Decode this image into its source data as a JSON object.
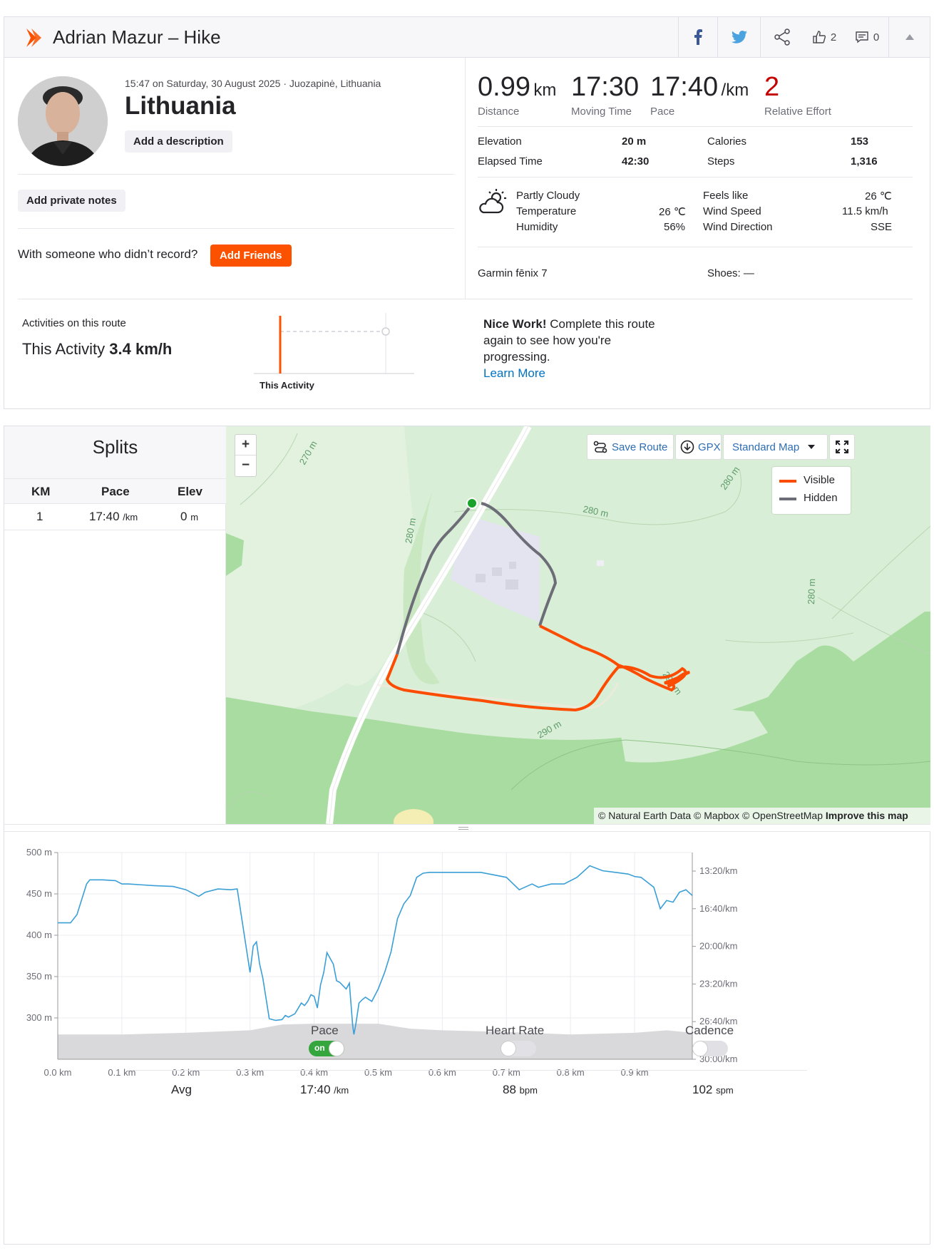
{
  "header": {
    "title": "Adrian Mazur – Hike",
    "kudos_count": "2",
    "comments_count": "0"
  },
  "activity": {
    "datetime_location": "15:47 on Saturday, 30 August 2025 · Juozapinė, Lithuania",
    "name": "Lithuania",
    "add_description": "Add a description",
    "add_private_notes": "Add private notes",
    "with_someone": "With someone who didn’t record?",
    "add_friends": "Add Friends"
  },
  "stats": {
    "distance_value": "0.99",
    "distance_unit": "km",
    "distance_label": "Distance",
    "moving_time_value": "17:30",
    "moving_time_label": "Moving Time",
    "pace_value": "17:40",
    "pace_unit": "/km",
    "pace_label": "Pace",
    "relative_effort_value": "2",
    "relative_effort_label": "Relative Effort",
    "elevation_label": "Elevation",
    "elevation_value": "20 m",
    "elapsed_label": "Elapsed Time",
    "elapsed_value": "42:30",
    "calories_label": "Calories",
    "calories_value": "153",
    "steps_label": "Steps",
    "steps_value": "1,316"
  },
  "weather": {
    "condition": "Partly Cloudy",
    "temperature_label": "Temperature",
    "temperature_value": "26 ℃",
    "humidity_label": "Humidity",
    "humidity_value": "56%",
    "feels_like_label": "Feels like",
    "feels_like_value": "26 ℃",
    "wind_speed_label": "Wind Speed",
    "wind_speed_value": "11.5 km/h",
    "wind_direction_label": "Wind Direction",
    "wind_direction_value": "SSE"
  },
  "gear": {
    "device": "Garmin fēnix 7",
    "shoes": "Shoes: —"
  },
  "route": {
    "activities_label": "Activities on this route",
    "this_activity_prefix": "This Activity",
    "this_activity_speed": "3.4 km/h",
    "chart_label": "This Activity",
    "nice_work_bold": "Nice Work!",
    "nice_work_line1": " Complete this route",
    "nice_work_line2": "again to see how you're",
    "nice_work_line3": "progressing.",
    "learn_more": "Learn More"
  },
  "splits": {
    "title": "Splits",
    "col_km": "KM",
    "col_pace": "Pace",
    "col_elev": "Elev",
    "rows": [
      {
        "km": "1",
        "pace": "17:40",
        "pace_unit": "/km",
        "elev": "0",
        "elev_unit": "m"
      }
    ]
  },
  "map": {
    "zoom_in": "+",
    "zoom_out": "−",
    "save_route": "Save Route",
    "gpx": "GPX",
    "map_type": "Standard Map",
    "legend_visible": "Visible",
    "legend_hidden": "Hidden",
    "contour_labels": [
      "270 m",
      "280 m",
      "280 m",
      "280 m",
      "280 m",
      "290 m",
      "290 m"
    ],
    "attribution": "© Natural Earth Data © Mapbox © OpenStreetMap",
    "improve": "Improve this map",
    "colors": {
      "visible": "#fc4c02",
      "hidden": "#6d6d78",
      "start": "#1aa32a"
    }
  },
  "chart_data": {
    "type": "line",
    "x_ticks": [
      "0.0 km",
      "0.1 km",
      "0.2 km",
      "0.3 km",
      "0.4 km",
      "0.5 km",
      "0.6 km",
      "0.7 km",
      "0.8 km",
      "0.9 km"
    ],
    "y_left_ticks": [
      "500 m",
      "450 m",
      "400 m",
      "350 m",
      "300 m"
    ],
    "y_right_ticks": [
      "13:20/km",
      "16:40/km",
      "20:00/km",
      "23:20/km",
      "26:40/km",
      "30:00/km"
    ],
    "pace_series_m": {
      "x": [
        0.0,
        0.02,
        0.03,
        0.045,
        0.05,
        0.07,
        0.09,
        0.1,
        0.11,
        0.13,
        0.15,
        0.18,
        0.2,
        0.22,
        0.23,
        0.25,
        0.27,
        0.28,
        0.3,
        0.305,
        0.31,
        0.315,
        0.32,
        0.33,
        0.34,
        0.35,
        0.355,
        0.36,
        0.37,
        0.38,
        0.385,
        0.39,
        0.395,
        0.4,
        0.405,
        0.41,
        0.415,
        0.42,
        0.43,
        0.435,
        0.44,
        0.445,
        0.45,
        0.455,
        0.46,
        0.462,
        0.465,
        0.47,
        0.475,
        0.48,
        0.49,
        0.5,
        0.51,
        0.52,
        0.53,
        0.54,
        0.55,
        0.56,
        0.57,
        0.58,
        0.6,
        0.63,
        0.66,
        0.7,
        0.72,
        0.74,
        0.75,
        0.77,
        0.79,
        0.81,
        0.83,
        0.85,
        0.87,
        0.89,
        0.9,
        0.91,
        0.93,
        0.94,
        0.95,
        0.96,
        0.97,
        0.98,
        0.99
      ],
      "y": [
        415,
        415,
        425,
        462,
        467,
        467,
        466,
        462,
        462,
        461,
        460,
        459,
        455,
        447,
        452,
        456,
        455,
        456,
        355,
        387,
        392,
        365,
        348,
        299,
        297,
        298,
        303,
        301,
        305,
        318,
        315,
        320,
        328,
        326,
        312,
        340,
        355,
        379,
        365,
        345,
        343,
        339,
        335,
        342,
        292,
        280,
        292,
        318,
        322,
        325,
        320,
        335,
        355,
        380,
        420,
        438,
        448,
        470,
        475,
        476,
        476,
        476,
        476,
        470,
        455,
        462,
        458,
        462,
        462,
        470,
        484,
        478,
        476,
        474,
        471,
        470,
        458,
        432,
        442,
        440,
        452,
        455,
        448
      ]
    },
    "elevation_profile_m": {
      "x": [
        0.0,
        0.1,
        0.2,
        0.3,
        0.35,
        0.4,
        0.5,
        0.55,
        0.6,
        0.7,
        0.8,
        0.9,
        0.95,
        0.99
      ],
      "y": [
        280,
        280,
        282,
        285,
        292,
        293,
        293,
        287,
        285,
        283,
        280,
        282,
        285,
        282
      ]
    },
    "xlim": [
      0.0,
      0.99
    ],
    "ylim": [
      250,
      500
    ]
  },
  "bottom": {
    "pace_label": "Pace",
    "pace_toggle": "on",
    "heart_rate_label": "Heart Rate",
    "cadence_label": "Cadence",
    "avg_label": "Avg",
    "avg_pace": "17:40",
    "avg_pace_unit": "/km",
    "avg_hr": "88",
    "avg_hr_unit": "bpm",
    "avg_cadence": "102",
    "avg_cadence_unit": "spm"
  }
}
